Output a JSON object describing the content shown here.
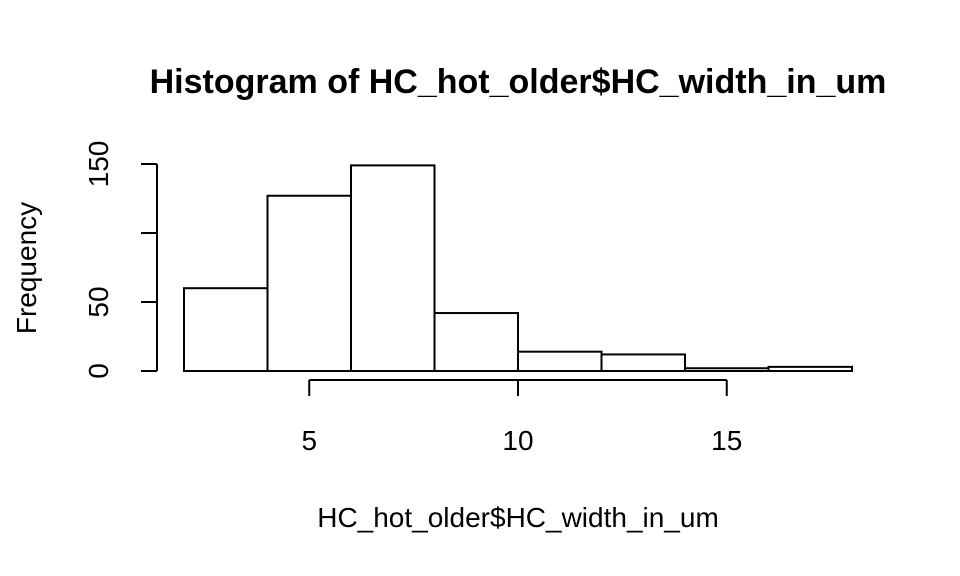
{
  "chart_data": {
    "type": "bar",
    "title": "Histogram of HC_hot_older$HC_width_in_um",
    "xlabel": "HC_hot_older$HC_width_in_um",
    "ylabel": "Frequency",
    "bins": [
      {
        "x0": 2,
        "x1": 4,
        "count": 60
      },
      {
        "x0": 4,
        "x1": 6,
        "count": 127
      },
      {
        "x0": 6,
        "x1": 8,
        "count": 149
      },
      {
        "x0": 8,
        "x1": 10,
        "count": 42
      },
      {
        "x0": 10,
        "x1": 12,
        "count": 14
      },
      {
        "x0": 12,
        "x1": 14,
        "count": 12
      },
      {
        "x0": 14,
        "x1": 16,
        "count": 2
      },
      {
        "x0": 16,
        "x1": 18,
        "count": 3
      }
    ],
    "x_ticks": [
      5,
      10,
      15
    ],
    "x_tick_labels": [
      "5",
      "10",
      "15"
    ],
    "y_ticks": [
      0,
      50,
      100,
      150
    ],
    "y_tick_labels": [
      "0",
      "50",
      "",
      "150"
    ],
    "xlim": [
      2,
      18
    ],
    "ylim": [
      0,
      150
    ],
    "bar_fill": "#ffffff",
    "bar_stroke": "#000000",
    "grid": false,
    "legend": false
  }
}
